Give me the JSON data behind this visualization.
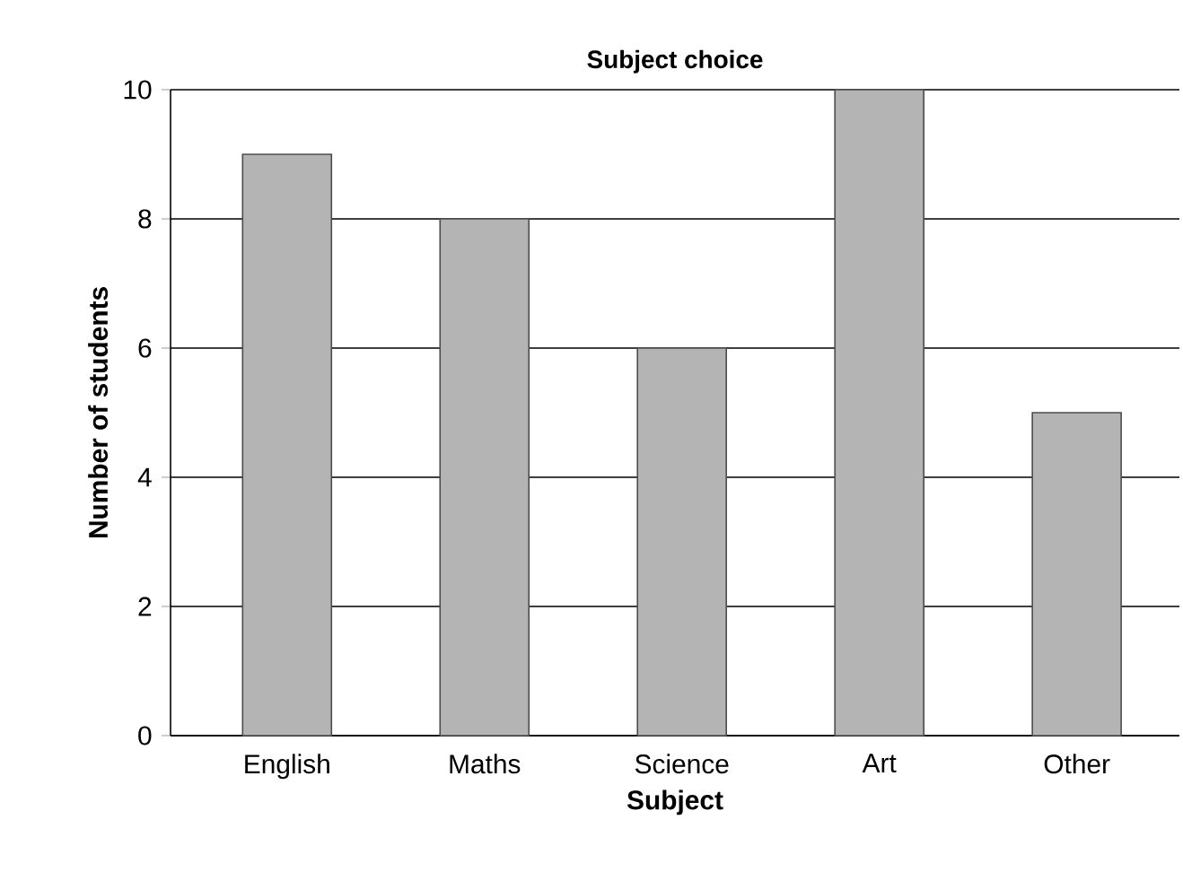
{
  "chart_data": {
    "type": "bar",
    "title": "Subject choice",
    "xlabel": "Subject",
    "ylabel": "Number of students",
    "categories": [
      "English",
      "Maths",
      "Science",
      "Art",
      "Other"
    ],
    "values": [
      9,
      8,
      6,
      10,
      5
    ],
    "color": "#b4b4b4",
    "ylim": [
      0,
      10
    ],
    "yticks": [
      0,
      2,
      4,
      6,
      8,
      10
    ],
    "grid": "y"
  }
}
